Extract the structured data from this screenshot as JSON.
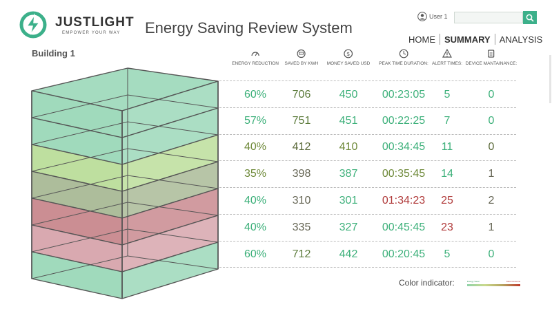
{
  "brand": {
    "name": "JUSTLIGHT",
    "tagline": "EMPOWER YOUR WAY",
    "color": "#3cb08a"
  },
  "app_title": "Energy Saving Review System",
  "user": {
    "label": "User 1"
  },
  "search": {
    "placeholder": ""
  },
  "nav": {
    "home": "HOME",
    "summary": "SUMMARY",
    "analysis": "ANALYSIS",
    "active": "summary"
  },
  "building": {
    "title": "Building 1"
  },
  "columns": [
    {
      "label": "ENERGY REDUCTION",
      "icon": "gauge-icon"
    },
    {
      "label": "SAVED BY KWH",
      "icon": "meter-icon"
    },
    {
      "label": "MONEY SAVED USD",
      "icon": "dollar-icon"
    },
    {
      "label": "PEAK TIME DURATION:",
      "icon": "clock-icon"
    },
    {
      "label": "ALERT TIMES:",
      "icon": "warning-icon"
    },
    {
      "label": "DEVICE MANTAINANCE:",
      "icon": "device-icon"
    }
  ],
  "floors": [
    {
      "reduction": "60%",
      "kwh": "706",
      "usd": "450",
      "peak": "00:23:05",
      "alerts": "5",
      "maint": "0",
      "fill": "#8fd3b0",
      "text": "#3db07a"
    },
    {
      "reduction": "57%",
      "kwh": "751",
      "usd": "451",
      "peak": "00:22:25",
      "alerts": "7",
      "maint": "0",
      "fill": "#8fd3b0",
      "text": "#3db07a"
    },
    {
      "reduction": "40%",
      "kwh": "412",
      "usd": "410",
      "peak": "00:34:45",
      "alerts": "11",
      "maint": "0",
      "fill": "#b3d98e",
      "text": "#6f8a3a"
    },
    {
      "reduction": "35%",
      "kwh": "398",
      "usd": "387",
      "peak": "00:35:45",
      "alerts": "14",
      "maint": "1",
      "fill": "#9fb28a",
      "text": "#7a7a3a"
    },
    {
      "reduction": "40%",
      "kwh": "310",
      "usd": "301",
      "peak": "01:34:23",
      "alerts": "25",
      "maint": "2",
      "fill": "#c27a80",
      "text": "#b03a3a"
    },
    {
      "reduction": "40%",
      "kwh": "335",
      "usd": "327",
      "peak": "00:45:45",
      "alerts": "23",
      "maint": "1",
      "fill": "#d29aa2",
      "text": "#b03a3a"
    },
    {
      "reduction": "60%",
      "kwh": "712",
      "usd": "442",
      "peak": "00:20:45",
      "alerts": "5",
      "maint": "0",
      "fill": "#8fd3b0",
      "text": "#3db07a"
    }
  ],
  "cell_colors": [
    [
      "#3db07a",
      "#5b7a3a",
      "#3db07a",
      "#3db07a",
      "#3db07a",
      "#3db07a"
    ],
    [
      "#3db07a",
      "#5b7a3a",
      "#3db07a",
      "#3db07a",
      "#3db07a",
      "#3db07a"
    ],
    [
      "#6f8a3a",
      "#5b6a3a",
      "#6f8a3a",
      "#3db07a",
      "#3db07a",
      "#5b6a3a"
    ],
    [
      "#6f8a3a",
      "#666655",
      "#3db07a",
      "#6f8a3a",
      "#3db07a",
      "#666655"
    ],
    [
      "#3db07a",
      "#666655",
      "#3db07a",
      "#b03a3a",
      "#b03a3a",
      "#666655"
    ],
    [
      "#3db07a",
      "#666655",
      "#3db07a",
      "#3db07a",
      "#b03a3a",
      "#666655"
    ],
    [
      "#3db07a",
      "#5b7a3a",
      "#3db07a",
      "#3db07a",
      "#3db07a",
      "#3db07a"
    ]
  ],
  "indicator": {
    "label": "Color indicator:",
    "left": "Energy Saver",
    "right": "Most Consume"
  }
}
